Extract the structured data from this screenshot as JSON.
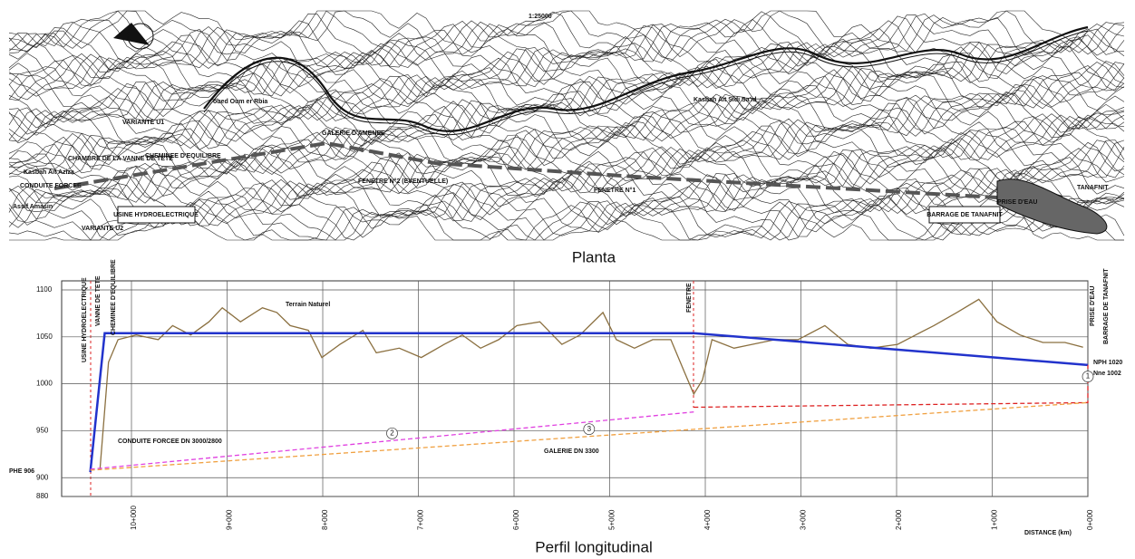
{
  "plan": {
    "scale": "1:25000",
    "caption": "Planta",
    "labels": [
      "Kasbah Ait Aziza",
      "CHAMBRE DE LA VANNE DE TETE",
      "CONDUITE FORCEE",
      "VARIANTE U1",
      "VARIANTE U2",
      "CHEMINEE D'EQUILIBRE",
      "GALERIE D'AMENEE",
      "FENETRE N°2 (EVENTUELLE)",
      "FENETRE N°1",
      "Kasbah Ait Sidi Sa'id",
      "oued Oum er Rbia",
      "PRISE D'EAU",
      "TANAFNIT",
      "USINE HYDROELECTRIQUE",
      "BARRAGE DE TANAFNIT",
      "Assif Amasin"
    ]
  },
  "chart_data": {
    "type": "line",
    "caption": "Perfil longitudinal",
    "x_label": "DISTANCE (km)",
    "xlim": [
      10.73,
      0
    ],
    "ylim": [
      880,
      1100
    ],
    "xticks": [
      {
        "value": 10,
        "label": "10+000"
      },
      {
        "value": 9,
        "label": "9+000"
      },
      {
        "value": 8,
        "label": "8+000"
      },
      {
        "value": 7,
        "label": "7+000"
      },
      {
        "value": 6,
        "label": "6+000"
      },
      {
        "value": 5,
        "label": "5+000"
      },
      {
        "value": 4,
        "label": "4+000"
      },
      {
        "value": 3,
        "label": "3+000"
      },
      {
        "value": 2,
        "label": "2+000"
      },
      {
        "value": 1,
        "label": "1+000"
      },
      {
        "value": 0,
        "label": "0+000"
      }
    ],
    "yticks": [
      880,
      900,
      950,
      1000,
      1050,
      1100
    ],
    "grid": true,
    "annotations": [
      "USINE HYDROELECTRIQUE",
      "VANNE DE TETE",
      "CHEMINEE D'EQUILIBRE",
      "CONDUITE FORCEE DN 3000/2800",
      "GALERIE DN 3300",
      "FENETRE",
      "PRISE D'EAU",
      "BARRAGE DE TANAFNIT",
      "NPH 1020",
      "Nne 1002",
      "PHE 906"
    ],
    "series": [
      {
        "name": "Terrain Naturel",
        "color": "#8b7040",
        "x": [
          10.33,
          10.24,
          10.14,
          9.95,
          9.72,
          9.57,
          9.38,
          9.19,
          9.05,
          8.86,
          8.63,
          8.48,
          8.34,
          8.15,
          8.01,
          7.82,
          7.58,
          7.44,
          7.2,
          6.97,
          6.73,
          6.54,
          6.35,
          6.16,
          5.97,
          5.73,
          5.5,
          5.31,
          5.07,
          4.93,
          4.74,
          4.55,
          4.36,
          4.22,
          4.12,
          4.03,
          3.93,
          3.7,
          3.51,
          3.27,
          3.03,
          2.75,
          2.51,
          2.27,
          1.99,
          1.8,
          1.61,
          1.37,
          1.14,
          0.95,
          0.71,
          0.47,
          0.24,
          0.05
        ],
        "values": [
          908,
          1023,
          1047,
          1052,
          1047,
          1062,
          1052,
          1066,
          1081,
          1066,
          1081,
          1076,
          1062,
          1057,
          1028,
          1042,
          1057,
          1033,
          1038,
          1028,
          1042,
          1052,
          1038,
          1047,
          1062,
          1066,
          1042,
          1052,
          1076,
          1047,
          1038,
          1047,
          1047,
          1013,
          989,
          1004,
          1047,
          1038,
          1042,
          1047,
          1047,
          1062,
          1042,
          1038,
          1042,
          1052,
          1062,
          1076,
          1090,
          1066,
          1052,
          1044,
          1044,
          1039
        ]
      },
      {
        "color": "#2233cc",
        "x": [
          10.43,
          10.28,
          4.12,
          0
        ],
        "values": [
          906,
          1054,
          1054,
          1020
        ]
      },
      {
        "name": "1",
        "color": "#dd2222",
        "x": [
          4.12,
          0,
          0
        ],
        "values": [
          975,
          980,
          1020
        ]
      },
      {
        "name": "2",
        "color": "#e040e0",
        "x": [
          10.43,
          4.12
        ],
        "values": [
          909,
          970
        ]
      },
      {
        "name": "3",
        "color": "#f0a040",
        "x": [
          10.43,
          0
        ],
        "values": [
          908,
          980
        ]
      }
    ]
  }
}
